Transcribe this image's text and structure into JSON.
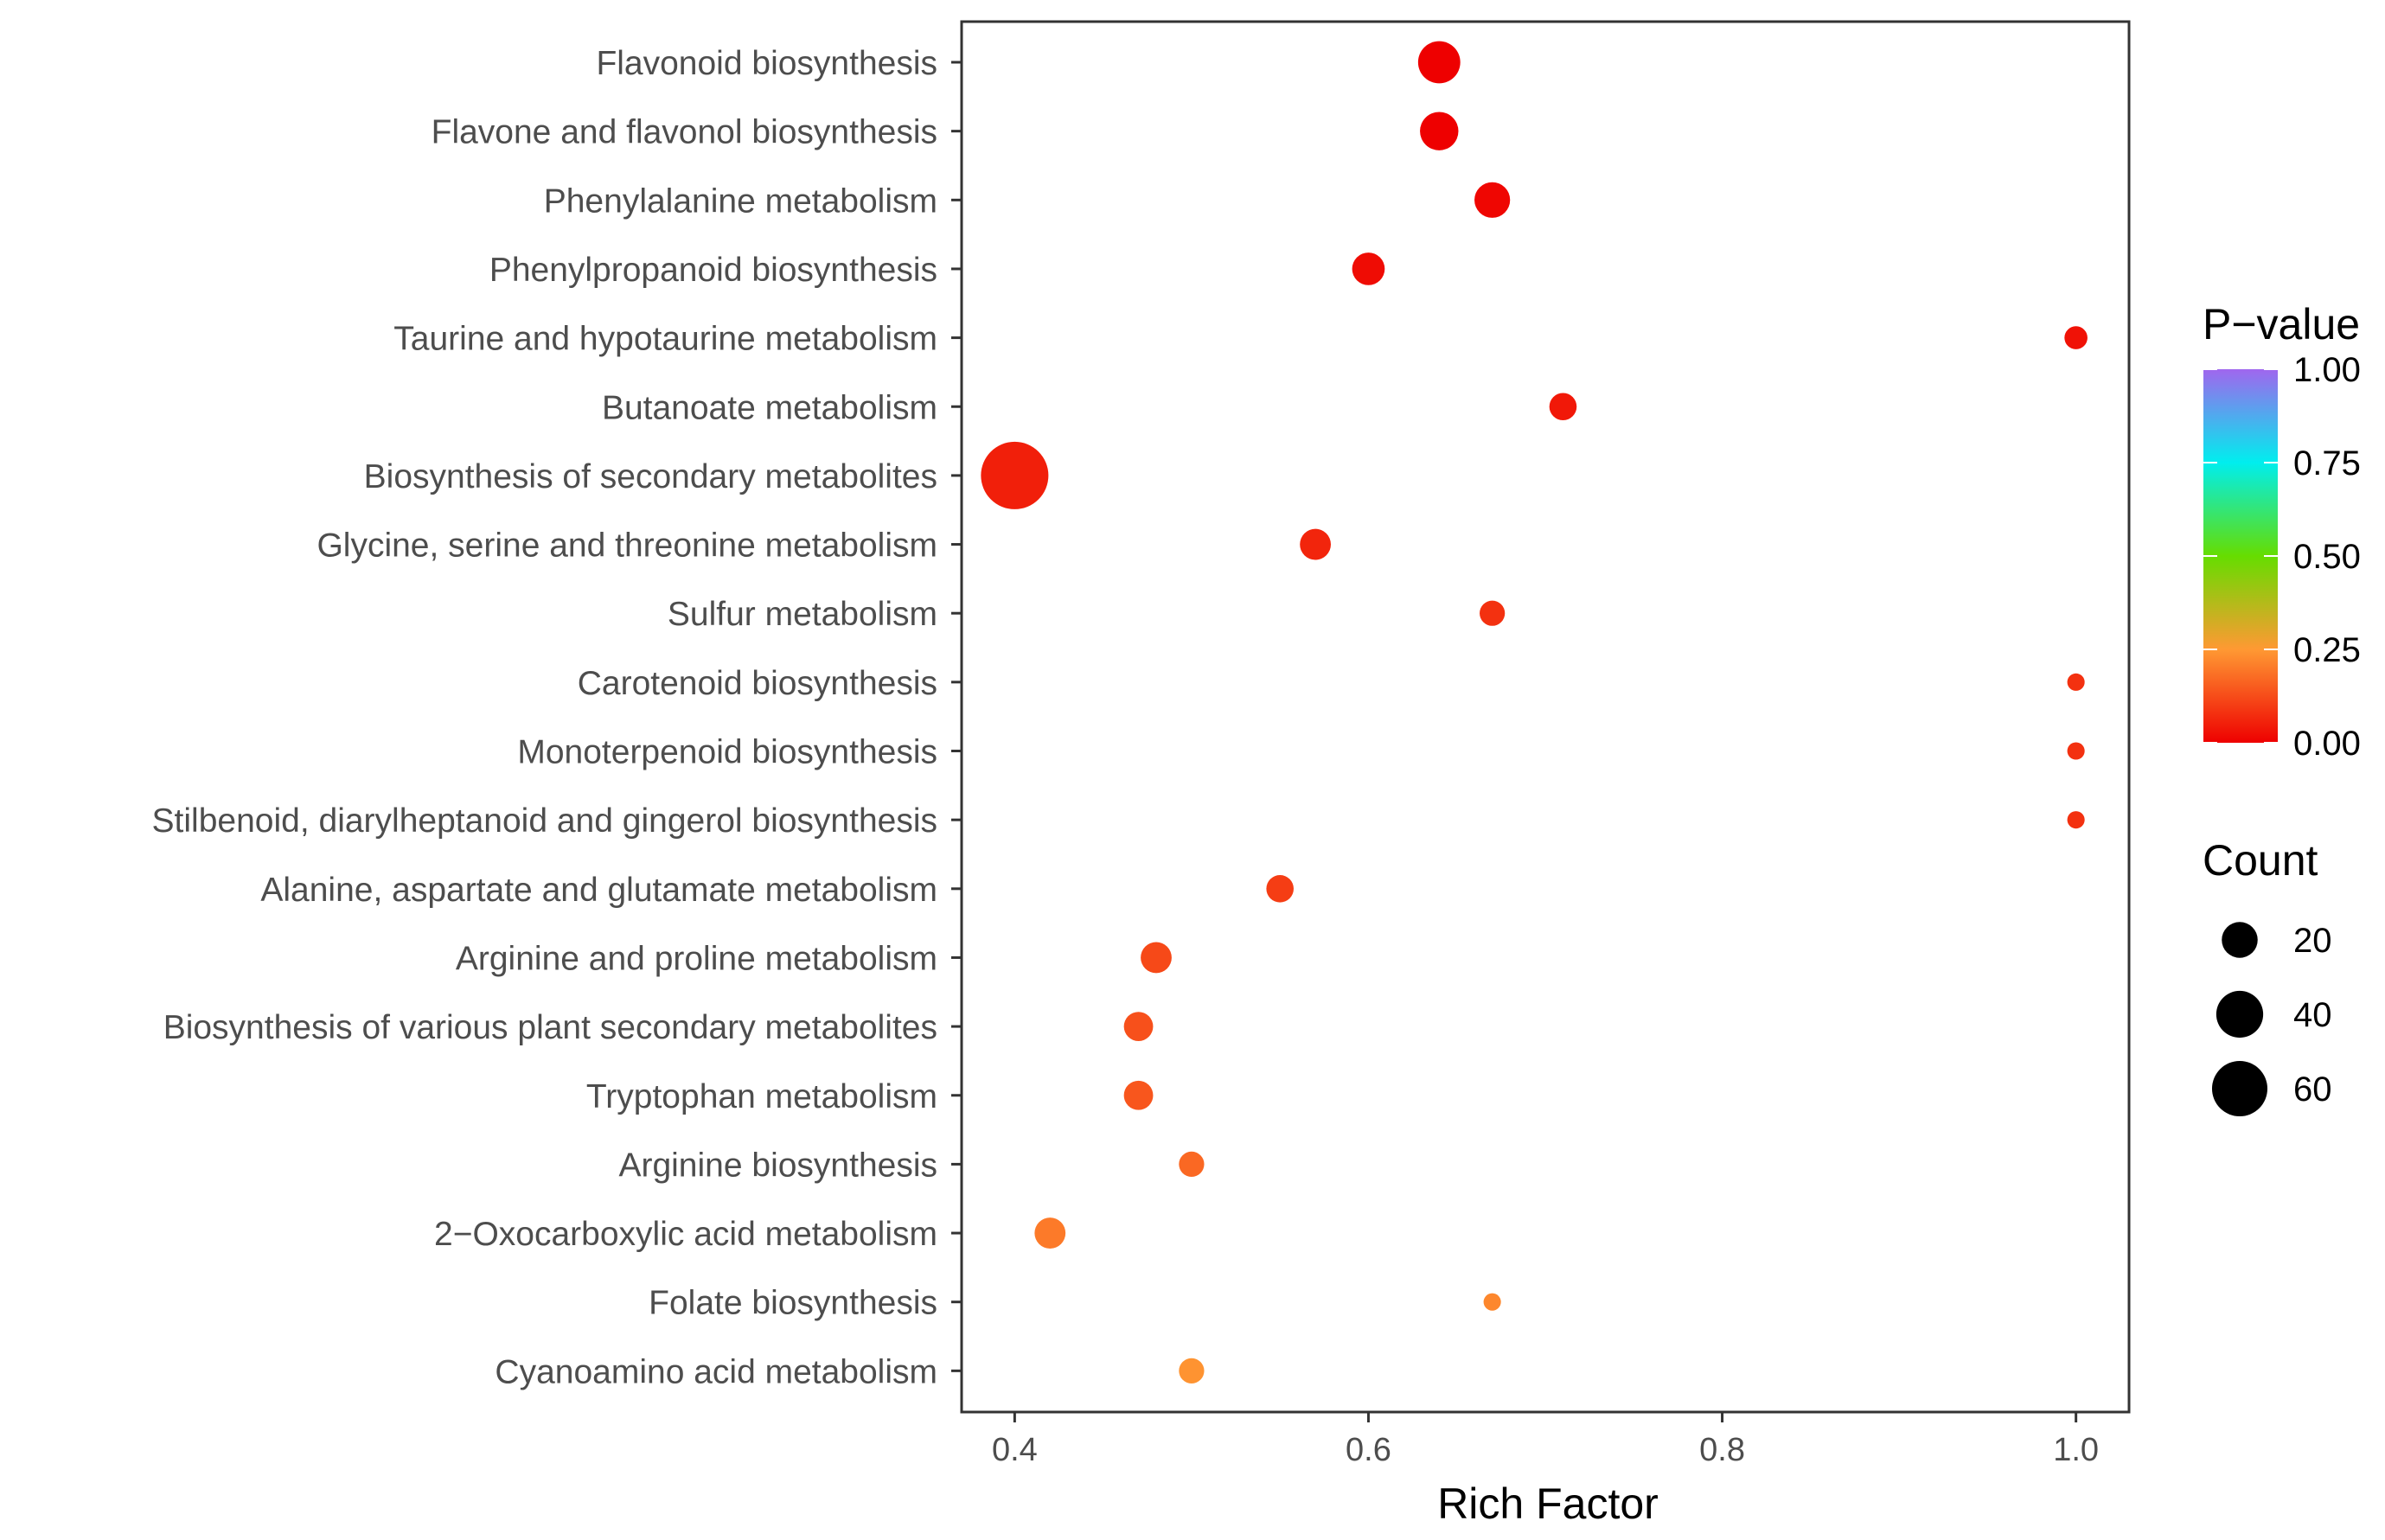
{
  "chart_data": {
    "type": "scatter",
    "xlabel": "Rich Factor",
    "xlim": [
      0.37,
      1.03
    ],
    "x_ticks": [
      0.4,
      0.6,
      0.8,
      1.0
    ],
    "x_tick_labels": [
      "0.4",
      "0.6",
      "0.8",
      "1.0"
    ],
    "categories": [
      "Flavonoid biosynthesis",
      "Flavone and flavonol biosynthesis",
      "Phenylalanine metabolism",
      "Phenylpropanoid biosynthesis",
      "Taurine and hypotaurine metabolism",
      "Butanoate metabolism",
      "Biosynthesis of secondary metabolites",
      "Glycine, serine and threonine metabolism",
      "Sulfur metabolism",
      "Carotenoid biosynthesis",
      "Monoterpenoid biosynthesis",
      "Stilbenoid, diarylheptanoid and gingerol biosynthesis",
      "Alanine, aspartate and glutamate metabolism",
      "Arginine and proline metabolism",
      "Biosynthesis of various plant secondary metabolites",
      "Tryptophan metabolism",
      "Arginine biosynthesis",
      "2−Oxocarboxylic acid metabolism",
      "Folate biosynthesis",
      "Cyanoamino acid metabolism"
    ],
    "points": [
      {
        "category": "Flavonoid biosynthesis",
        "rich_factor": 0.64,
        "count": 16,
        "p_value": 0.0
      },
      {
        "category": "Flavone and flavonol biosynthesis",
        "rich_factor": 0.64,
        "count": 13,
        "p_value": 0.0
      },
      {
        "category": "Phenylalanine metabolism",
        "rich_factor": 0.67,
        "count": 11,
        "p_value": 0.01
      },
      {
        "category": "Phenylpropanoid biosynthesis",
        "rich_factor": 0.6,
        "count": 9,
        "p_value": 0.02
      },
      {
        "category": "Taurine and hypotaurine metabolism",
        "rich_factor": 1.0,
        "count": 4,
        "p_value": 0.03
      },
      {
        "category": "Butanoate metabolism",
        "rich_factor": 0.71,
        "count": 6,
        "p_value": 0.04
      },
      {
        "category": "Biosynthesis of secondary metabolites",
        "rich_factor": 0.4,
        "count": 44,
        "p_value": 0.05
      },
      {
        "category": "Glycine, serine and threonine metabolism",
        "rich_factor": 0.57,
        "count": 8,
        "p_value": 0.06
      },
      {
        "category": "Sulfur metabolism",
        "rich_factor": 0.67,
        "count": 5,
        "p_value": 0.08
      },
      {
        "category": "Carotenoid biosynthesis",
        "rich_factor": 1.0,
        "count": 2,
        "p_value": 0.08
      },
      {
        "category": "Monoterpenoid biosynthesis",
        "rich_factor": 1.0,
        "count": 2,
        "p_value": 0.08
      },
      {
        "category": "Stilbenoid, diarylheptanoid and gingerol biosynthesis",
        "rich_factor": 1.0,
        "count": 2,
        "p_value": 0.08
      },
      {
        "category": "Alanine, aspartate and glutamate metabolism",
        "rich_factor": 0.55,
        "count": 6,
        "p_value": 0.1
      },
      {
        "category": "Arginine and proline metabolism",
        "rich_factor": 0.48,
        "count": 8,
        "p_value": 0.12
      },
      {
        "category": "Biosynthesis of various plant secondary metabolites",
        "rich_factor": 0.47,
        "count": 7,
        "p_value": 0.13
      },
      {
        "category": "Tryptophan metabolism",
        "rich_factor": 0.47,
        "count": 7,
        "p_value": 0.14
      },
      {
        "category": "Arginine biosynthesis",
        "rich_factor": 0.5,
        "count": 5,
        "p_value": 0.17
      },
      {
        "category": "2−Oxocarboxylic acid metabolism",
        "rich_factor": 0.42,
        "count": 8,
        "p_value": 0.2
      },
      {
        "category": "Folate biosynthesis",
        "rich_factor": 0.67,
        "count": 2,
        "p_value": 0.22
      },
      {
        "category": "Cyanoamino acid metabolism",
        "rich_factor": 0.5,
        "count": 5,
        "p_value": 0.24
      }
    ],
    "legend_color": {
      "title": "P−value",
      "ticks": [
        1.0,
        0.75,
        0.5,
        0.25,
        0.0
      ],
      "tick_labels": [
        "1.00",
        "0.75",
        "0.50",
        "0.25",
        "0.00"
      ],
      "range": [
        0.0,
        1.0
      ],
      "stops": [
        {
          "value": 0.0,
          "color": "#ee0000"
        },
        {
          "value": 0.25,
          "color": "#ff9933"
        },
        {
          "value": 0.5,
          "color": "#66dd00"
        },
        {
          "value": 0.75,
          "color": "#00eeee"
        },
        {
          "value": 1.0,
          "color": "#a066ee"
        }
      ],
      "placement": "right"
    },
    "legend_size": {
      "title": "Count",
      "values": [
        20,
        40,
        60
      ],
      "labels": [
        "20",
        "40",
        "60"
      ],
      "color": "#000000",
      "placement": "right"
    },
    "grid": false
  }
}
